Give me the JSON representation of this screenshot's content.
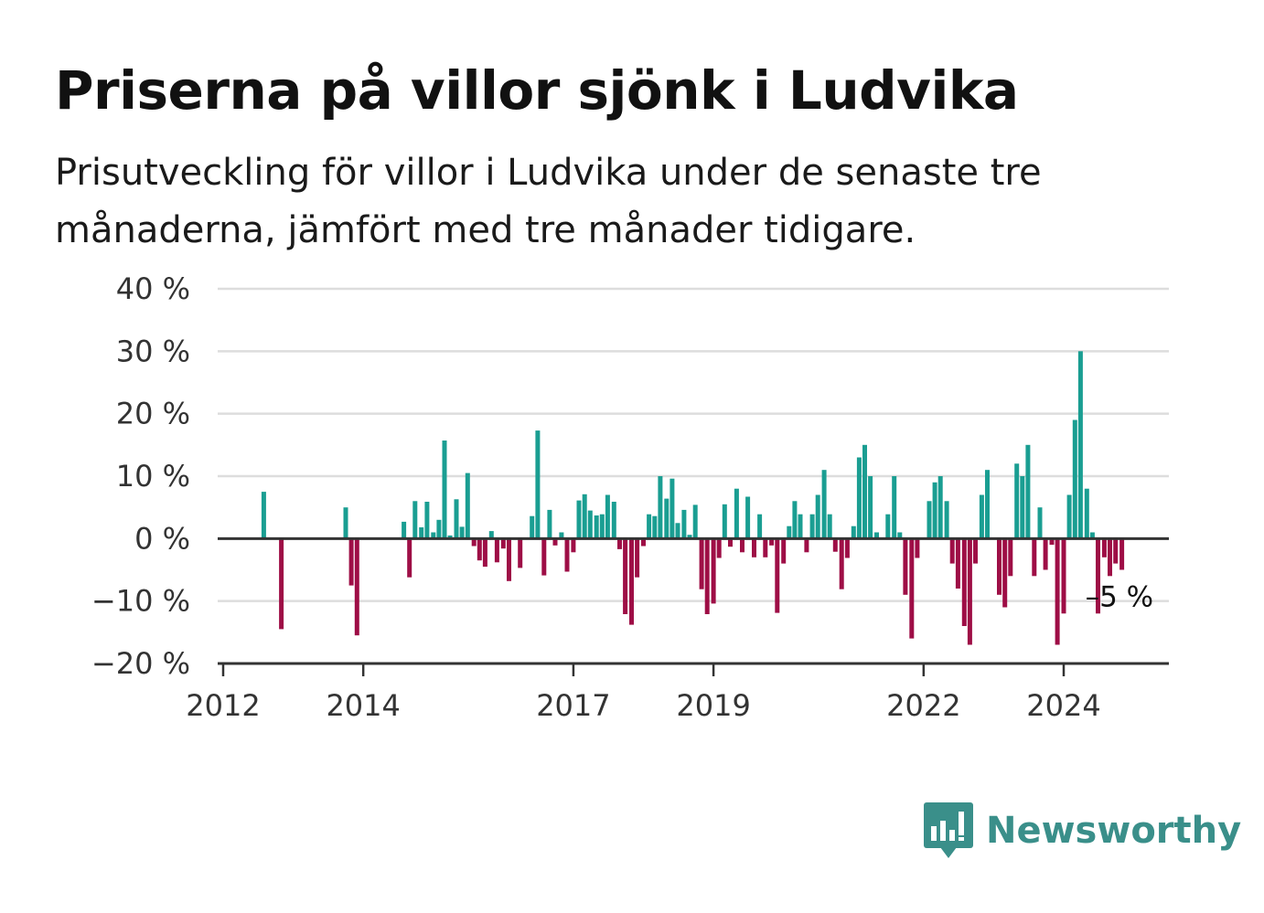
{
  "header": {
    "title": "Priserna på villor sjönk i Ludvika",
    "subtitle": "Prisutveckling för villor i Ludvika under de senaste tre månaderna, jämfört med tre månader tidigare."
  },
  "brand": {
    "name": "Newsworthy",
    "color": "#3a8f8a",
    "icon": "chart-bubble-logo"
  },
  "colors": {
    "positive": "#1a9e92",
    "negative": "#9e0e46",
    "grid": "#dddddd",
    "axis": "#333333"
  },
  "chart_data": {
    "type": "bar",
    "ylim": [
      -20,
      40
    ],
    "y_ticks": [
      -20,
      -10,
      0,
      10,
      20,
      30,
      40
    ],
    "y_tick_labels": [
      "−20 %",
      "−10 %",
      "0 %",
      "10 %",
      "20 %",
      "30 %",
      "40 %"
    ],
    "x_ticks": [
      {
        "label": "2012",
        "x": 2012.0
      },
      {
        "label": "2014",
        "x": 2014.0
      },
      {
        "label": "2017",
        "x": 2017.0
      },
      {
        "label": "2019",
        "x": 2019.0
      },
      {
        "label": "2022",
        "x": 2022.0
      },
      {
        "label": "2024",
        "x": 2024.0
      }
    ],
    "grid": true,
    "bars": [
      {
        "x": 2012.58,
        "y": 7.5
      },
      {
        "x": 2012.83,
        "y": -14.5
      },
      {
        "x": 2013.75,
        "y": 5
      },
      {
        "x": 2013.83,
        "y": -7.5
      },
      {
        "x": 2013.91,
        "y": -15.5
      },
      {
        "x": 2014.58,
        "y": 2.7
      },
      {
        "x": 2014.66,
        "y": -6.2
      },
      {
        "x": 2014.74,
        "y": 6
      },
      {
        "x": 2014.83,
        "y": 1.8
      },
      {
        "x": 2014.91,
        "y": 5.9
      },
      {
        "x": 2015.0,
        "y": 1
      },
      {
        "x": 2015.08,
        "y": 3
      },
      {
        "x": 2015.16,
        "y": 15.7
      },
      {
        "x": 2015.24,
        "y": 0.5
      },
      {
        "x": 2015.33,
        "y": 6.3
      },
      {
        "x": 2015.41,
        "y": 1.9
      },
      {
        "x": 2015.49,
        "y": 10.5
      },
      {
        "x": 2015.58,
        "y": -1.2
      },
      {
        "x": 2015.66,
        "y": -3.5
      },
      {
        "x": 2015.74,
        "y": -4.5
      },
      {
        "x": 2015.83,
        "y": 1.2
      },
      {
        "x": 2015.91,
        "y": -3.8
      },
      {
        "x": 2016.0,
        "y": -1.6
      },
      {
        "x": 2016.08,
        "y": -6.8
      },
      {
        "x": 2016.24,
        "y": -4.7
      },
      {
        "x": 2016.41,
        "y": 3.6
      },
      {
        "x": 2016.49,
        "y": 17.3
      },
      {
        "x": 2016.58,
        "y": -5.9
      },
      {
        "x": 2016.66,
        "y": 4.6
      },
      {
        "x": 2016.74,
        "y": -1.1
      },
      {
        "x": 2016.83,
        "y": 1
      },
      {
        "x": 2016.91,
        "y": -5.3
      },
      {
        "x": 2017.0,
        "y": -2.2
      },
      {
        "x": 2017.08,
        "y": 6.1
      },
      {
        "x": 2017.16,
        "y": 7.1
      },
      {
        "x": 2017.24,
        "y": 4.5
      },
      {
        "x": 2017.33,
        "y": 3.7
      },
      {
        "x": 2017.41,
        "y": 3.9
      },
      {
        "x": 2017.49,
        "y": 7
      },
      {
        "x": 2017.58,
        "y": 5.9
      },
      {
        "x": 2017.66,
        "y": -1.7
      },
      {
        "x": 2017.74,
        "y": -12.1
      },
      {
        "x": 2017.83,
        "y": -13.8
      },
      {
        "x": 2017.91,
        "y": -6.2
      },
      {
        "x": 2018.0,
        "y": -1.2
      },
      {
        "x": 2018.08,
        "y": 3.9
      },
      {
        "x": 2018.16,
        "y": 3.6
      },
      {
        "x": 2018.24,
        "y": 10
      },
      {
        "x": 2018.33,
        "y": 6.4
      },
      {
        "x": 2018.41,
        "y": 9.6
      },
      {
        "x": 2018.49,
        "y": 2.5
      },
      {
        "x": 2018.58,
        "y": 4.6
      },
      {
        "x": 2018.66,
        "y": 0.6
      },
      {
        "x": 2018.74,
        "y": 5.4
      },
      {
        "x": 2018.83,
        "y": -8.1
      },
      {
        "x": 2018.91,
        "y": -12.1
      },
      {
        "x": 2019.0,
        "y": -10.4
      },
      {
        "x": 2019.08,
        "y": -3.1
      },
      {
        "x": 2019.16,
        "y": 5.5
      },
      {
        "x": 2019.24,
        "y": -1.3
      },
      {
        "x": 2019.33,
        "y": 8
      },
      {
        "x": 2019.41,
        "y": -2.2
      },
      {
        "x": 2019.49,
        "y": 6.7
      },
      {
        "x": 2019.58,
        "y": -3
      },
      {
        "x": 2019.66,
        "y": 3.9
      },
      {
        "x": 2019.74,
        "y": -3
      },
      {
        "x": 2019.83,
        "y": -1.1
      },
      {
        "x": 2019.91,
        "y": -11.9
      },
      {
        "x": 2020.0,
        "y": -4
      },
      {
        "x": 2020.08,
        "y": 2
      },
      {
        "x": 2020.16,
        "y": 6
      },
      {
        "x": 2020.24,
        "y": 3.9
      },
      {
        "x": 2020.33,
        "y": -2.2
      },
      {
        "x": 2020.41,
        "y": 3.9
      },
      {
        "x": 2020.49,
        "y": 7
      },
      {
        "x": 2020.58,
        "y": 11
      },
      {
        "x": 2020.66,
        "y": 3.9
      },
      {
        "x": 2020.74,
        "y": -2.1
      },
      {
        "x": 2020.83,
        "y": -8.1
      },
      {
        "x": 2020.91,
        "y": -3.1
      },
      {
        "x": 2021.0,
        "y": 2
      },
      {
        "x": 2021.08,
        "y": 13
      },
      {
        "x": 2021.16,
        "y": 15
      },
      {
        "x": 2021.24,
        "y": 10
      },
      {
        "x": 2021.33,
        "y": 1
      },
      {
        "x": 2021.49,
        "y": 3.9
      },
      {
        "x": 2021.58,
        "y": 10
      },
      {
        "x": 2021.66,
        "y": 1
      },
      {
        "x": 2021.74,
        "y": -9
      },
      {
        "x": 2021.83,
        "y": -16
      },
      {
        "x": 2021.91,
        "y": -3.1
      },
      {
        "x": 2022.08,
        "y": 6
      },
      {
        "x": 2022.16,
        "y": 9
      },
      {
        "x": 2022.24,
        "y": 10
      },
      {
        "x": 2022.33,
        "y": 6
      },
      {
        "x": 2022.41,
        "y": -4
      },
      {
        "x": 2022.49,
        "y": -8
      },
      {
        "x": 2022.58,
        "y": -14
      },
      {
        "x": 2022.66,
        "y": -17
      },
      {
        "x": 2022.74,
        "y": -4
      },
      {
        "x": 2022.83,
        "y": 7
      },
      {
        "x": 2022.91,
        "y": 11
      },
      {
        "x": 2023.08,
        "y": -9
      },
      {
        "x": 2023.16,
        "y": -11
      },
      {
        "x": 2023.24,
        "y": -6
      },
      {
        "x": 2023.33,
        "y": 12
      },
      {
        "x": 2023.41,
        "y": 10
      },
      {
        "x": 2023.49,
        "y": 15
      },
      {
        "x": 2023.58,
        "y": -6
      },
      {
        "x": 2023.66,
        "y": 5
      },
      {
        "x": 2023.74,
        "y": -5
      },
      {
        "x": 2023.83,
        "y": -1
      },
      {
        "x": 2023.91,
        "y": -17
      },
      {
        "x": 2024.0,
        "y": -12
      },
      {
        "x": 2024.08,
        "y": 7
      },
      {
        "x": 2024.16,
        "y": 19
      },
      {
        "x": 2024.24,
        "y": 30
      },
      {
        "x": 2024.33,
        "y": 8
      },
      {
        "x": 2024.41,
        "y": 1
      },
      {
        "x": 2024.49,
        "y": -12
      },
      {
        "x": 2024.58,
        "y": -3
      },
      {
        "x": 2024.66,
        "y": -6
      },
      {
        "x": 2024.74,
        "y": -4
      },
      {
        "x": 2024.83,
        "y": -5
      }
    ],
    "annotation": {
      "label": "–5 %",
      "x": 2024.83,
      "y": -5
    }
  }
}
